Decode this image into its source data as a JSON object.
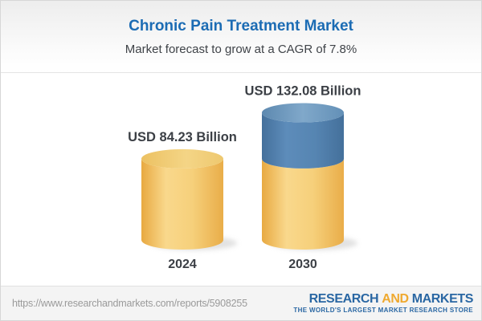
{
  "header": {
    "title": "Chronic Pain Treatment Market",
    "subtitle": "Market forecast to grow at a CAGR of 7.8%"
  },
  "chart_data": {
    "type": "bar",
    "subtype": "3d-cylinder",
    "title": "Chronic Pain Treatment Market",
    "subtitle": "Market forecast to grow at a CAGR of 7.8%",
    "cagr_percent": 7.8,
    "categories": [
      "2024",
      "2030"
    ],
    "values": [
      84.23,
      132.08
    ],
    "value_labels": [
      "USD 84.23 Billion",
      "USD 132.08 Billion"
    ],
    "unit": "USD Billion",
    "growth_segment": {
      "bar": "2030",
      "base_value": 84.23,
      "note": "blue top segment of 2030 bar marks growth above the 2024 value"
    },
    "grid": false,
    "colors": {
      "bar_yellow": "#f2c76d",
      "bar_yellow_edge": "#e8a941",
      "bar_blue": "#5685b2",
      "bar_blue_top": "#80a8ca",
      "label_text": "#3b3f45"
    }
  },
  "footer": {
    "url": "https://www.researchandmarkets.com/reports/5908255",
    "logo": {
      "part1": "RESEARCH",
      "part2": "AND",
      "part3": "MARKETS",
      "tagline": "THE WORLD'S LARGEST MARKET RESEARCH STORE",
      "blue": "#2a67a3",
      "yellow": "#efa92f"
    }
  },
  "theme": {
    "title_color": "#1c6cb4",
    "subtitle_color": "#3f4348"
  }
}
